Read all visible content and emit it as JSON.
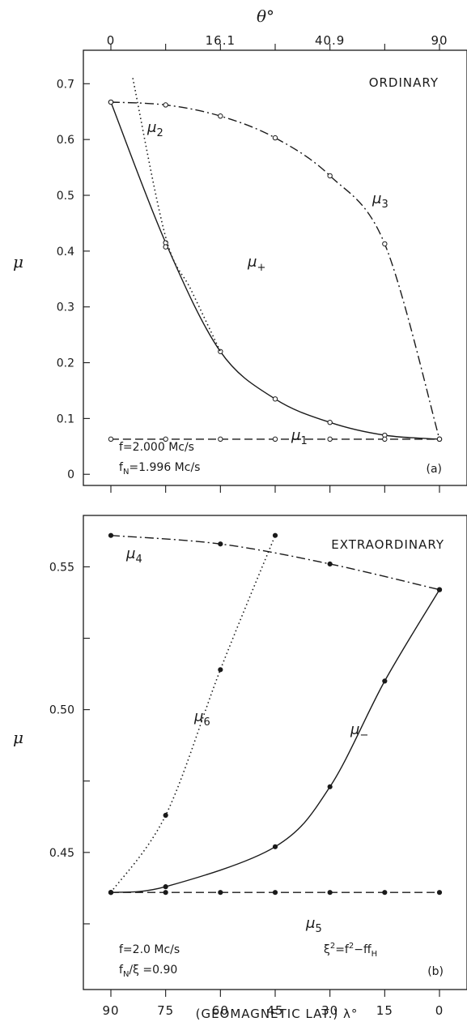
{
  "chart_data": [
    {
      "type": "line",
      "panel_label": "(a)",
      "mode_label": "ORDINARY",
      "top_axis": {
        "label": "θ°",
        "ticks": [
          "0",
          "16.1",
          "40.9",
          "90"
        ],
        "tick_lat": [
          90,
          60,
          30,
          0
        ]
      },
      "x": {
        "ticks": [
          90,
          75,
          60,
          45,
          30,
          15,
          0
        ],
        "lim": [
          90,
          0
        ]
      },
      "ylabel": "μ",
      "ylim": [
        -0.02,
        0.76
      ],
      "yticks": [
        "0",
        "0.1",
        "0.2",
        "0.3",
        "0.4",
        "0.5",
        "0.6",
        "0.7"
      ],
      "annotations": [
        "f=2.000 Mc/s",
        "fN=1.996 Mc/s"
      ],
      "series": [
        {
          "name": "μ3",
          "style": "dashdot",
          "marker": "open",
          "points": [
            [
              90,
              0.667
            ],
            [
              75,
              0.662
            ],
            [
              60,
              0.642
            ],
            [
              45,
              0.603
            ],
            [
              30,
              0.535
            ],
            [
              15,
              0.413
            ],
            [
              0,
              0.063
            ]
          ]
        },
        {
          "name": "μ+",
          "style": "solid",
          "marker": "open",
          "points": [
            [
              90,
              0.667
            ],
            [
              75,
              0.415
            ],
            [
              60,
              0.22
            ],
            [
              45,
              0.135
            ],
            [
              30,
              0.093
            ],
            [
              15,
              0.07
            ],
            [
              0,
              0.063
            ]
          ]
        },
        {
          "name": "μ2",
          "style": "dotted",
          "marker": "open",
          "points": [
            [
              84,
              0.71
            ],
            [
              75,
              0.425
            ],
            [
              68,
              0.33
            ],
            [
              60,
              0.22
            ]
          ]
        },
        {
          "name": "μ1",
          "style": "dashed",
          "marker": "open",
          "points": [
            [
              90,
              0.063
            ],
            [
              75,
              0.063
            ],
            [
              60,
              0.063
            ],
            [
              45,
              0.063
            ],
            [
              30,
              0.063
            ],
            [
              15,
              0.063
            ],
            [
              0,
              0.063
            ]
          ]
        }
      ]
    },
    {
      "type": "line",
      "panel_label": "(b)",
      "mode_label": "EXTRAORDINARY",
      "x": {
        "label": "(GEOMAGNETIC LAT.) λ°",
        "ticks": [
          90,
          75,
          60,
          45,
          30,
          15,
          0
        ],
        "lim": [
          90,
          0
        ]
      },
      "ylabel": "μ",
      "ylim": [
        0.402,
        0.568
      ],
      "yticks": [
        "0.45",
        "0.50",
        "0.55"
      ],
      "annotations": [
        "f=2.0 Mc/s",
        "fN/ξ =0.90",
        "ξ2=f2−ffH"
      ],
      "series": [
        {
          "name": "μ4",
          "style": "dashdot",
          "marker": "filled",
          "points": [
            [
              90,
              0.561
            ],
            [
              60,
              0.558
            ],
            [
              30,
              0.551
            ],
            [
              0,
              0.542
            ]
          ]
        },
        {
          "name": "μ6",
          "style": "dotted",
          "marker": "filled",
          "points": [
            [
              90,
              0.436
            ],
            [
              75,
              0.463
            ],
            [
              60,
              0.514
            ],
            [
              45,
              0.561
            ]
          ]
        },
        {
          "name": "μ−",
          "style": "solid",
          "marker": "filled",
          "points": [
            [
              90,
              0.436
            ],
            [
              75,
              0.438
            ],
            [
              45,
              0.452
            ],
            [
              30,
              0.473
            ],
            [
              15,
              0.51
            ],
            [
              0,
              0.542
            ]
          ]
        },
        {
          "name": "μ5",
          "style": "dashed",
          "marker": "filled",
          "points": [
            [
              90,
              0.436
            ],
            [
              75,
              0.436
            ],
            [
              60,
              0.436
            ],
            [
              45,
              0.436
            ],
            [
              30,
              0.436
            ],
            [
              15,
              0.436
            ],
            [
              0,
              0.436
            ]
          ]
        }
      ]
    }
  ]
}
